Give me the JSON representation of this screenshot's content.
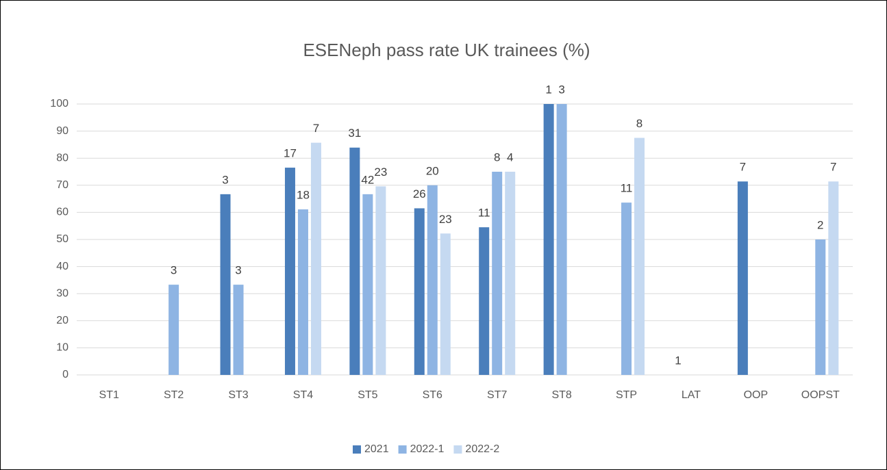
{
  "chart_data": {
    "type": "bar",
    "title": "ESENeph pass rate UK trainees (%)",
    "categories": [
      "ST1",
      "ST2",
      "ST3",
      "ST4",
      "ST5",
      "ST6",
      "ST7",
      "ST8",
      "STP",
      "LAT",
      "OOP",
      "OOPST"
    ],
    "series": [
      {
        "name": "2021",
        "color": "#4a7ebb",
        "values": [
          null,
          null,
          66.7,
          76.5,
          83.9,
          61.5,
          54.5,
          100,
          null,
          0,
          71.4,
          null
        ],
        "counts": [
          null,
          null,
          3,
          17,
          31,
          26,
          11,
          1,
          null,
          1,
          7,
          null
        ]
      },
      {
        "name": "2022-1",
        "color": "#8eb4e3",
        "values": [
          null,
          33.3,
          33.3,
          61.1,
          66.7,
          70,
          75,
          100,
          63.6,
          null,
          null,
          50
        ],
        "counts": [
          null,
          3,
          3,
          18,
          42,
          20,
          8,
          3,
          11,
          null,
          null,
          2
        ]
      },
      {
        "name": "2022-2",
        "color": "#c5d9f1",
        "values": [
          null,
          null,
          null,
          85.7,
          69.6,
          52.2,
          75,
          null,
          87.5,
          null,
          null,
          71.4
        ],
        "counts": [
          null,
          null,
          null,
          7,
          23,
          23,
          4,
          null,
          8,
          null,
          null,
          7
        ]
      }
    ],
    "ylim": [
      0,
      100
    ],
    "yticks": [
      0,
      10,
      20,
      30,
      40,
      50,
      60,
      70,
      80,
      90,
      100
    ],
    "grid": true,
    "legend": "bottom"
  }
}
